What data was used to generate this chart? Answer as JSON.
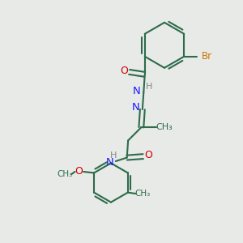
{
  "bg_color": "#e8eae8",
  "bond_color": "#2d6b4a",
  "N_color": "#1a1aff",
  "O_color": "#cc0000",
  "Br_color": "#cc7700",
  "H_color": "#888888",
  "bond_width": 1.5,
  "figsize": [
    3.0,
    3.0
  ],
  "dpi": 100,
  "xlim": [
    0,
    10
  ],
  "ylim": [
    0,
    10
  ]
}
